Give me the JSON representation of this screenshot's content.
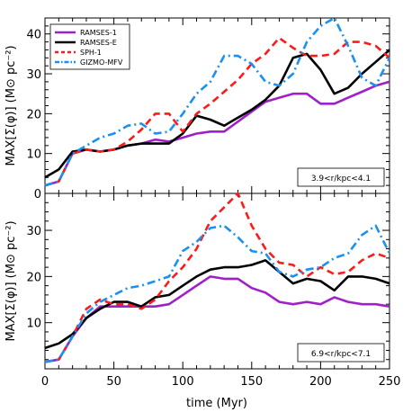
{
  "chart_data": {
    "type": "line",
    "xlabel": "time (Myr)",
    "xlim": [
      0,
      250
    ],
    "x_ticks": [
      "0",
      "50",
      "100",
      "150",
      "200",
      "250"
    ],
    "legend": {
      "placement": "top-left",
      "entries": [
        {
          "name": "RAMSES-1",
          "color": "#a020c8",
          "style": "solid"
        },
        {
          "name": "RAMSES-E",
          "color": "#000000",
          "style": "solid"
        },
        {
          "name": "SPH-1",
          "color": "#ff1a1a",
          "style": "dashed"
        },
        {
          "name": "GIZMO-MFV",
          "color": "#1a90f0",
          "style": "dashdot"
        }
      ]
    },
    "panels": [
      {
        "ylabel": "MAX[Σ(φ)] (M⊙ pc⁻²)",
        "ylim": [
          0,
          44
        ],
        "y_ticks": [
          0,
          10,
          20,
          30,
          40
        ],
        "annotation": "3.9<r/kpc<4.1",
        "series": [
          {
            "name": "RAMSES-1",
            "x": [
              0,
              10,
              20,
              30,
              40,
              50,
              60,
              70,
              80,
              90,
              100,
              110,
              120,
              130,
              140,
              150,
              160,
              170,
              180,
              190,
              200,
              210,
              220,
              230,
              240,
              250
            ],
            "y": [
              2,
              3,
              10,
              11,
              10.5,
              11,
              12,
              12.5,
              13.5,
              13,
              14,
              15,
              15.5,
              15.5,
              18,
              20.5,
              23,
              24,
              25,
              25,
              22.5,
              22.5,
              24,
              25.5,
              27,
              28
            ]
          },
          {
            "name": "RAMSES-E",
            "x": [
              0,
              10,
              20,
              30,
              40,
              50,
              60,
              70,
              80,
              90,
              100,
              110,
              120,
              130,
              140,
              150,
              160,
              170,
              180,
              190,
              200,
              210,
              220,
              230,
              240,
              250
            ],
            "y": [
              4,
              6,
              10.5,
              11,
              10.5,
              11,
              12,
              12.5,
              12.5,
              12.5,
              15,
              19.5,
              18.5,
              17,
              19,
              21,
              23.5,
              27,
              34,
              35,
              31,
              25,
              26.5,
              30,
              33,
              36
            ]
          },
          {
            "name": "SPH-1",
            "x": [
              0,
              10,
              20,
              30,
              40,
              50,
              60,
              70,
              80,
              90,
              100,
              110,
              120,
              130,
              140,
              150,
              160,
              170,
              180,
              190,
              200,
              210,
              220,
              230,
              240,
              250
            ],
            "y": [
              2,
              3,
              10,
              11,
              10.5,
              11,
              13,
              16,
              20,
              20,
              15.5,
              20,
              22.5,
              25.5,
              28.5,
              32.5,
              35,
              39,
              36.5,
              34.5,
              34.5,
              35,
              38,
              38,
              37,
              34
            ]
          },
          {
            "name": "GIZMO-MFV",
            "x": [
              0,
              10,
              20,
              30,
              40,
              50,
              60,
              70,
              80,
              90,
              100,
              110,
              120,
              130,
              140,
              150,
              160,
              170,
              180,
              190,
              200,
              210,
              220,
              230,
              240,
              250
            ],
            "y": [
              2,
              3,
              10,
              12,
              14,
              15,
              17,
              17.5,
              15,
              15.5,
              20,
              25,
              28,
              34.5,
              34.5,
              32.5,
              28,
              27,
              30,
              38,
              42,
              44,
              37,
              29,
              27,
              34
            ]
          }
        ]
      },
      {
        "ylabel": "MAX[Σ(φ)] (M⊙ pc⁻²)",
        "ylim": [
          0,
          38
        ],
        "y_ticks": [
          10,
          20,
          30
        ],
        "annotation": "6.9<r/kpc<7.1",
        "series": [
          {
            "name": "RAMSES-1",
            "x": [
              0,
              10,
              20,
              30,
              40,
              50,
              60,
              70,
              80,
              90,
              100,
              110,
              120,
              130,
              140,
              150,
              160,
              170,
              180,
              190,
              200,
              210,
              220,
              230,
              240,
              250
            ],
            "y": [
              1.5,
              2,
              7,
              11,
              13.5,
              13.5,
              13.5,
              13.5,
              13.5,
              14,
              16,
              18,
              20,
              19.5,
              19.5,
              17.5,
              16.5,
              14.5,
              14,
              14.5,
              14,
              15.5,
              14.5,
              14,
              14,
              13.5
            ]
          },
          {
            "name": "RAMSES-E",
            "x": [
              0,
              10,
              20,
              30,
              40,
              50,
              60,
              70,
              80,
              90,
              100,
              110,
              120,
              130,
              140,
              150,
              160,
              170,
              180,
              190,
              200,
              210,
              220,
              230,
              240,
              250
            ],
            "y": [
              4.5,
              5.5,
              7.5,
              11,
              13,
              14.5,
              14.5,
              13.5,
              15.5,
              16,
              18,
              20,
              21.5,
              22,
              22,
              22.5,
              23.5,
              21,
              18.5,
              19.5,
              19,
              17,
              20,
              20,
              19.5,
              18.5
            ]
          },
          {
            "name": "SPH-1",
            "x": [
              0,
              10,
              20,
              30,
              40,
              50,
              60,
              70,
              80,
              90,
              100,
              110,
              120,
              130,
              140,
              150,
              160,
              170,
              180,
              190,
              200,
              210,
              220,
              230,
              240,
              250
            ],
            "y": [
              1.5,
              2,
              7,
              13,
              15,
              14,
              14,
              13,
              15,
              19,
              22,
              26,
              32,
              35,
              38,
              31,
              26,
              23,
              22.5,
              20,
              22,
              20.5,
              21,
              23.5,
              25,
              24
            ]
          },
          {
            "name": "GIZMO-MFV",
            "x": [
              0,
              10,
              20,
              30,
              40,
              50,
              60,
              70,
              80,
              90,
              100,
              110,
              120,
              130,
              140,
              150,
              160,
              170,
              180,
              190,
              200,
              210,
              220,
              230,
              240,
              250
            ],
            "y": [
              1.5,
              2,
              7,
              12,
              14.5,
              16,
              17.5,
              18,
              19,
              20,
              25.5,
              27.5,
              30.5,
              31,
              28.5,
              25.5,
              25,
              21,
              20,
              21.5,
              22,
              24,
              25,
              29,
              31,
              25
            ]
          }
        ]
      }
    ]
  }
}
